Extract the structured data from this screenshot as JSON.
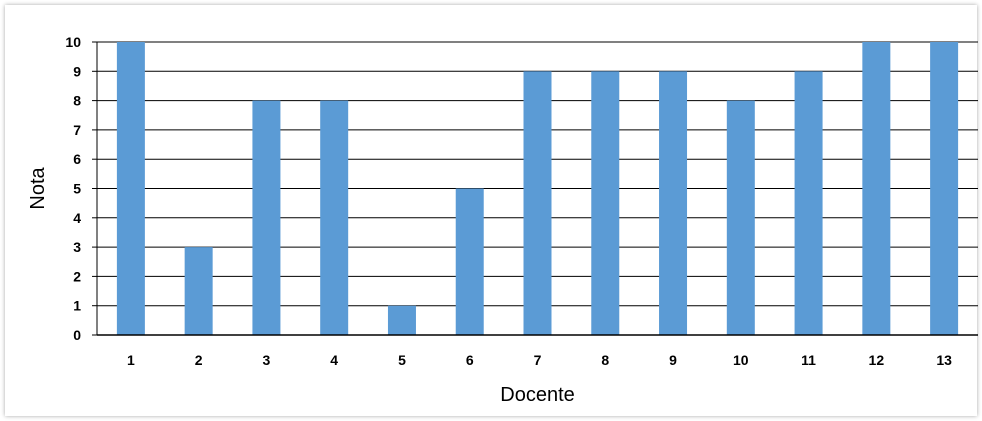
{
  "chart_data": {
    "type": "bar",
    "title": "",
    "xlabel": "Docente",
    "ylabel": "Nota",
    "categories": [
      "1",
      "2",
      "3",
      "4",
      "5",
      "6",
      "7",
      "8",
      "9",
      "10",
      "11",
      "12",
      "13"
    ],
    "values": [
      10,
      3,
      8,
      8,
      1,
      5,
      9,
      9,
      9,
      8,
      9,
      10,
      10
    ],
    "ylim": [
      0,
      10
    ],
    "yticks": [
      0,
      1,
      2,
      3,
      4,
      5,
      6,
      7,
      8,
      9,
      10
    ],
    "grid": true,
    "legend": "none",
    "bar_color": "#5B9BD5",
    "grid_color": "#000000"
  }
}
